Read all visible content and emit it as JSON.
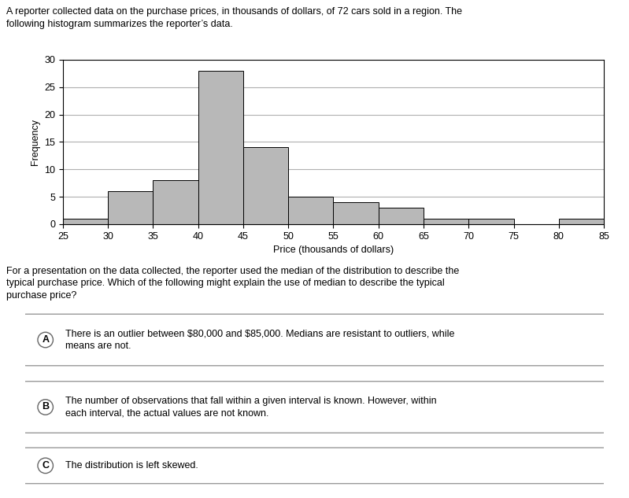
{
  "chart_data": {
    "type": "histogram",
    "title": "A reporter collected data on the purchase prices, in thousands of dollars, of 72 cars sold in a region. The\nfollowing histogram summarizes the reporter’s data.",
    "bins": [
      25,
      30,
      35,
      40,
      45,
      50,
      55,
      60,
      65,
      70,
      75,
      80,
      85
    ],
    "values": [
      1,
      6,
      8,
      28,
      14,
      5,
      4,
      3,
      1,
      1,
      0,
      1
    ],
    "color": "#b8b8b8",
    "xlabel": "Price (thousands of dollars)",
    "ylabel": "Frequency",
    "xlim": [
      25,
      85
    ],
    "xticks": [
      25,
      30,
      35,
      40,
      45,
      50,
      55,
      60,
      65,
      70,
      75,
      80,
      85
    ],
    "ylim": [
      0,
      30
    ],
    "yticks": [
      0,
      5,
      10,
      15,
      20,
      25,
      30
    ],
    "grid": true,
    "annotations": [
      {
        "text": "For a presentation on the data collected, the reporter used the median of the distribution to describe the\ntypical purchase price. Which of the following might explain the use of median to describe the typical\npurchase price?"
      },
      {
        "label": "A",
        "text": "There is an outlier between $80,000 and $85,000. Medians are resistant to outliers, while\nmeans are not."
      },
      {
        "label": "B",
        "text": "The number of observations that fall within a given interval is known. However, within\neach interval, the actual values are not known."
      },
      {
        "label": "C",
        "text": "The distribution is left skewed."
      }
    ]
  }
}
